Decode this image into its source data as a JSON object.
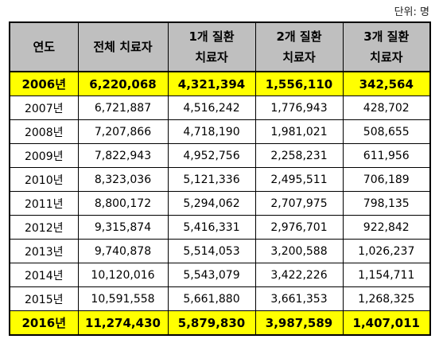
{
  "unit_note": "단위: 명",
  "header": {
    "year": "연도",
    "total": "전체 치료자",
    "one_line1": "1개 질환",
    "one_line2": "치료자",
    "two_line1": "2개 질환",
    "two_line2": "치료자",
    "three_line1": "3개 질환",
    "three_line2": "치료자"
  },
  "rows": [
    {
      "year": "2006년",
      "total": "6,220,068",
      "one": "4,321,394",
      "two": "1,556,110",
      "three": "342,564"
    },
    {
      "year": "2007년",
      "total": "6,721,887",
      "one": "4,516,242",
      "two": "1,776,943",
      "three": "428,702"
    },
    {
      "year": "2008년",
      "total": "7,207,866",
      "one": "4,718,190",
      "two": "1,981,021",
      "three": "508,655"
    },
    {
      "year": "2009년",
      "total": "7,822,943",
      "one": "4,952,756",
      "two": "2,258,231",
      "three": "611,956"
    },
    {
      "year": "2010년",
      "total": "8,323,036",
      "one": "5,121,336",
      "two": "2,495,511",
      "three": "706,189"
    },
    {
      "year": "2011년",
      "total": "8,800,172",
      "one": "5,294,062",
      "two": "2,707,975",
      "three": "798,135"
    },
    {
      "year": "2012년",
      "total": "9,315,874",
      "one": "5,416,331",
      "two": "2,976,701",
      "three": "922,842"
    },
    {
      "year": "2013년",
      "total": "9,740,878",
      "one": "5,514,053",
      "two": "3,200,588",
      "three": "1,026,237"
    },
    {
      "year": "2014년",
      "total": "10,120,016",
      "one": "5,543,079",
      "two": "3,422,226",
      "three": "1,154,711"
    },
    {
      "year": "2015년",
      "total": "10,591,558",
      "one": "5,661,880",
      "two": "3,661,353",
      "three": "1,268,325"
    },
    {
      "year": "2016년",
      "total": "11,274,430",
      "one": "5,879,830",
      "two": "3,987,589",
      "three": "1,407,011"
    }
  ],
  "colors": {
    "header_bg": "#bfbfbf",
    "highlight_bg": "#ffff00"
  }
}
